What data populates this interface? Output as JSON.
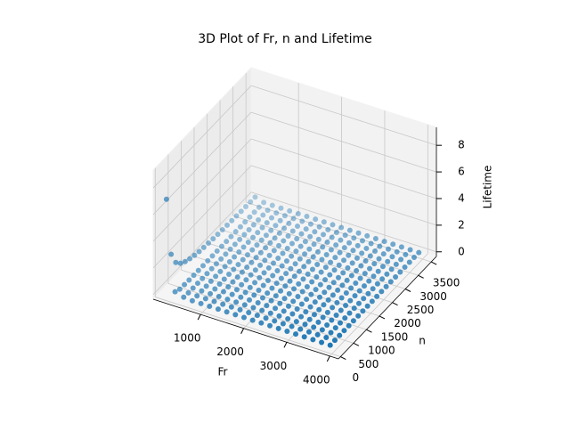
{
  "chart_data": {
    "type": "scatter3d",
    "title": "3D Plot of Fr, n and Lifetime",
    "x_label": "Fr",
    "y_label": "n",
    "z_label": "Lifetime",
    "color": "#1f77b4",
    "x": [
      100,
      300,
      500,
      700,
      900,
      1100,
      1300,
      1500,
      1700,
      1900,
      2100,
      2300,
      2500,
      2700,
      2900,
      3100,
      3300,
      3500,
      3700,
      3900
    ],
    "y": [
      100,
      280,
      460,
      640,
      820,
      1000,
      1180,
      1360,
      1540,
      1720,
      1900,
      2080,
      2260,
      2440,
      2620,
      2800,
      2980,
      3160,
      3340,
      3520
    ],
    "z": [
      [
        7,
        2.5,
        1.52,
        1.09,
        0.85,
        0.7,
        0.59,
        0.51,
        0.45,
        0.41,
        0.37,
        0.34,
        0.31,
        0.29,
        0.27,
        0.25,
        0.23,
        0.22,
        0.21,
        0.2
      ],
      [
        0.26,
        0.09,
        0.06,
        0.04,
        0.03,
        0.03,
        0.02,
        0.02,
        0.02,
        0.02,
        0.01,
        0.01,
        0.01,
        0.01,
        0.01,
        0.01,
        0.01,
        0.01,
        0.01,
        0.01
      ],
      [
        0.06,
        0.02,
        0.01,
        0.01,
        0,
        0,
        0,
        0,
        0,
        0,
        0,
        0,
        0,
        0,
        0,
        0,
        0,
        0,
        0,
        0
      ],
      [
        0,
        0,
        0,
        0,
        0,
        0,
        0,
        0,
        0,
        0,
        0,
        0,
        0,
        0,
        0,
        0,
        0,
        0,
        0,
        0
      ],
      [
        0,
        0,
        0,
        0,
        0,
        0,
        0,
        0,
        0,
        0,
        0,
        0,
        0,
        0,
        0,
        0,
        0,
        0,
        0,
        0
      ],
      [
        0,
        0,
        0,
        0,
        0,
        0,
        0,
        0,
        0,
        0,
        0,
        0,
        0,
        0,
        0,
        0,
        0,
        0,
        0,
        0
      ],
      [
        0,
        0,
        0,
        0,
        0,
        0,
        0,
        0,
        0,
        0,
        0,
        0,
        0,
        0,
        0,
        0,
        0,
        0,
        0,
        0
      ],
      [
        0,
        0,
        0,
        0,
        0,
        0,
        0,
        0,
        0,
        0,
        0,
        0,
        0,
        0,
        0,
        0,
        0,
        0,
        0,
        0
      ],
      [
        0,
        0,
        0,
        0,
        0,
        0,
        0,
        0,
        0,
        0,
        0,
        0,
        0,
        0,
        0,
        0,
        0,
        0,
        0,
        0
      ],
      [
        0,
        0,
        0,
        0,
        0,
        0,
        0,
        0,
        0,
        0,
        0,
        0,
        0,
        0,
        0,
        0,
        0,
        0,
        0,
        0
      ],
      [
        0,
        0,
        0,
        0,
        0,
        0,
        0,
        0,
        0,
        0,
        0,
        0,
        0,
        0,
        0,
        0,
        0,
        0,
        0,
        0
      ],
      [
        0,
        0,
        0,
        0,
        0,
        0,
        0,
        0,
        0,
        0,
        0,
        0,
        0,
        0,
        0,
        0,
        0,
        0,
        0,
        0
      ],
      [
        0,
        0,
        0,
        0,
        0,
        0,
        0,
        0,
        0,
        0,
        0,
        0,
        0,
        0,
        0,
        0,
        0,
        0,
        0,
        0
      ],
      [
        0,
        0,
        0,
        0,
        0,
        0,
        0,
        0,
        0,
        0,
        0,
        0,
        0,
        0,
        0,
        0,
        0,
        0,
        0,
        0
      ],
      [
        0,
        0,
        0,
        0,
        0,
        0,
        0,
        0,
        0,
        0,
        0,
        0,
        0,
        0,
        0,
        0,
        0,
        0,
        0,
        0
      ],
      [
        0,
        0,
        0,
        0,
        0,
        0,
        0,
        0,
        0,
        0,
        0,
        0,
        0,
        0,
        0,
        0,
        0,
        0,
        0,
        0
      ],
      [
        0,
        0,
        0,
        0,
        0,
        0,
        0,
        0,
        0,
        0,
        0,
        0,
        0,
        0,
        0,
        0,
        0,
        0,
        0,
        0
      ],
      [
        0,
        0,
        0,
        0,
        0,
        0,
        0,
        0,
        0,
        0,
        0,
        0,
        0,
        0,
        0,
        0,
        0,
        0,
        0,
        0
      ],
      [
        0,
        0,
        0,
        0,
        0,
        0,
        0,
        0,
        0,
        0,
        0,
        0,
        0,
        0,
        0,
        0,
        0,
        0,
        0,
        0
      ],
      [
        0,
        0,
        0,
        0,
        0,
        0,
        0,
        0,
        0,
        0,
        0,
        0,
        0,
        0,
        0,
        0,
        0,
        0,
        0,
        0
      ]
    ],
    "xlim": [
      -100,
      4200
    ],
    "xticks": [
      1000,
      2000,
      3000,
      4000
    ],
    "ylim": [
      -80,
      3700
    ],
    "yticks": [
      0,
      500,
      1000,
      1500,
      2000,
      2500,
      3000,
      3500
    ],
    "zlim": [
      -0.35,
      9.35
    ],
    "zticks": [
      0,
      2,
      4,
      6,
      8
    ],
    "grid": true
  }
}
